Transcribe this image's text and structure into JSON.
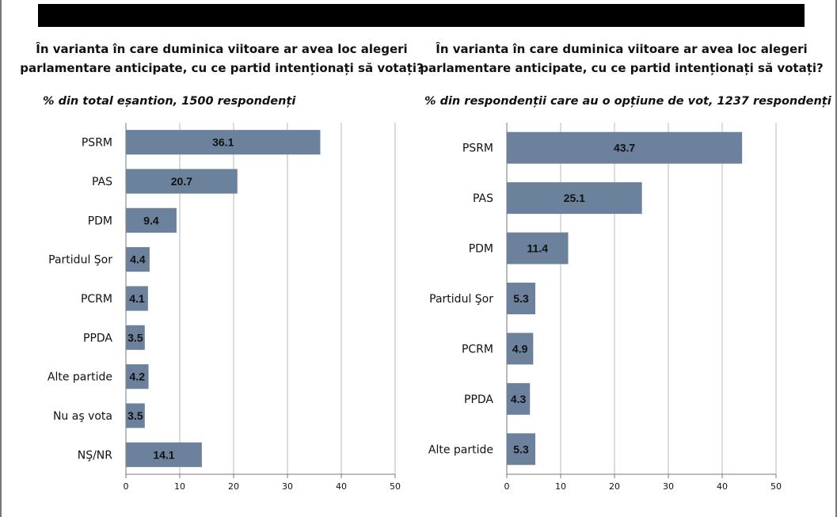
{
  "chart_data": [
    {
      "type": "bar",
      "orientation": "horizontal",
      "title": "În varianta în care duminica viitoare ar avea loc alegeri parlamentare anticipate, cu ce partid intenționați să votați?",
      "title_lines": [
        "În varianta în care duminica viitoare ar avea loc alegeri",
        "parlamentare anticipate, cu ce partid intenționați să votați?"
      ],
      "subtitle": "% din total eșantion, 1500 respondenți",
      "categories": [
        "PSRM",
        "PAS",
        "PDM",
        "Partidul Şor",
        "PCRM",
        "PPDA",
        "Alte partide",
        "Nu aş vota",
        "NŞ/NR"
      ],
      "values": [
        36.1,
        20.7,
        9.4,
        4.4,
        4.1,
        3.5,
        4.2,
        3.5,
        14.1
      ],
      "data_labels": [
        "36.1",
        "20.7",
        "9.4",
        "4.4",
        "4.1",
        "3.5",
        "4.2",
        "3.5",
        "14.1"
      ],
      "xlim": [
        0,
        50
      ],
      "xticks": [
        0,
        10,
        20,
        30,
        40,
        50
      ],
      "grid": true,
      "bar_color": "#6c819b"
    },
    {
      "type": "bar",
      "orientation": "horizontal",
      "title": "În varianta în care duminica viitoare ar avea loc alegeri parlamentare anticipate, cu ce partid intenționați să votați?",
      "title_lines": [
        "În varianta în care duminica viitoare ar avea loc alegeri",
        "parlamentare anticipate, cu ce partid intenționați să votați?"
      ],
      "subtitle": "% din respondenții care au o opțiune de vot, 1237 respondenți",
      "categories": [
        "PSRM",
        "PAS",
        "PDM",
        "Partidul Şor",
        "PCRM",
        "PPDA",
        "Alte partide"
      ],
      "values": [
        43.7,
        25.1,
        11.4,
        5.3,
        4.9,
        4.3,
        5.3
      ],
      "data_labels": [
        "43.7",
        "25.1",
        "11.4",
        "5.3",
        "4.9",
        "4.3",
        "5.3"
      ],
      "xlim": [
        0,
        50
      ],
      "xticks": [
        0,
        10,
        20,
        30,
        40,
        50
      ],
      "grid": true,
      "bar_color": "#6c819b"
    }
  ]
}
